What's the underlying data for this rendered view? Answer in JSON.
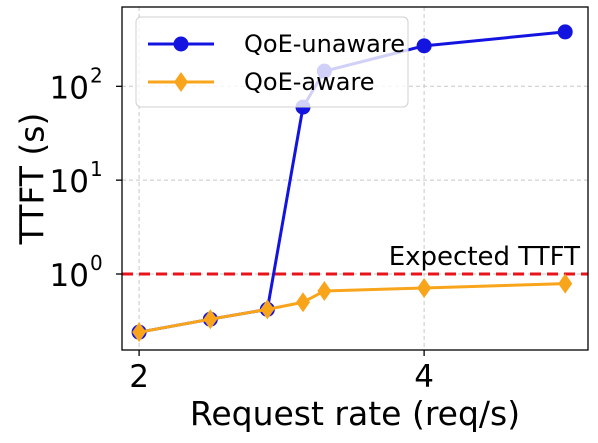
{
  "chart_data": {
    "type": "line",
    "xlabel": "Request rate (req/s)",
    "ylabel": "TTFT (s)",
    "xlim": [
      1.88,
      5.15
    ],
    "ylim": [
      0.155,
      700
    ],
    "y_scale": "log",
    "grid": true,
    "legend_position": "top-left",
    "x_ticks": [
      {
        "value": 2,
        "label": "2"
      },
      {
        "value": 4,
        "label": "4"
      }
    ],
    "y_ticks": [
      {
        "value": 1,
        "base": "10",
        "exp": "0"
      },
      {
        "value": 10,
        "base": "10",
        "exp": "1"
      },
      {
        "value": 100,
        "base": "10",
        "exp": "2"
      }
    ],
    "series": [
      {
        "name": "QoE-unaware",
        "color": "#1414e0",
        "marker": "circle",
        "x": [
          2.0,
          2.5,
          2.9,
          3.15,
          3.3,
          4.0,
          4.99
        ],
        "y": [
          0.24,
          0.33,
          0.42,
          60,
          145,
          270,
          380
        ]
      },
      {
        "name": "QoE-aware",
        "color": "#f8a51c",
        "marker": "diamond",
        "x": [
          2.0,
          2.5,
          2.9,
          3.15,
          3.3,
          4.0,
          4.99
        ],
        "y": [
          0.24,
          0.33,
          0.42,
          0.5,
          0.66,
          0.71,
          0.79
        ]
      }
    ],
    "reference_line": {
      "label": "Expected TTFT",
      "y": 1,
      "color": "#e8141c",
      "style": "dashed"
    }
  }
}
